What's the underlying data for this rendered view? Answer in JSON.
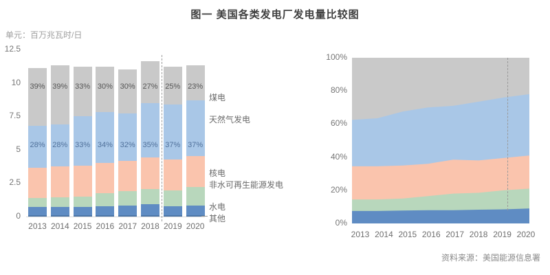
{
  "title": "图一  美国各类发电厂发电量比较图",
  "unit_label": "单元：百万兆瓦时/日",
  "source": "资料来源：美国能源信息署",
  "colors": {
    "coal": "#c9c9c9",
    "gas": "#a9c7e7",
    "nuclear": "#fac4ad",
    "nonhydro": "#b8d7bc",
    "hydro": "#5f8cc3",
    "other": "#4d77a8",
    "divider": "#9a9a9a"
  },
  "legend_items": [
    {
      "key": "coal",
      "label": "煤电"
    },
    {
      "key": "gas",
      "label": "天然气发电"
    },
    {
      "key": "nuclear",
      "label": "核电"
    },
    {
      "key": "nonhydro",
      "label": "非水可再生能源发电"
    },
    {
      "key": "hydro",
      "label": "水电"
    },
    {
      "key": "other",
      "label": "其他"
    }
  ],
  "chart_data": [
    {
      "type": "bar",
      "stacked": true,
      "title": "",
      "xlabel": "",
      "ylabel": "百万兆瓦时/日",
      "ylim": [
        0,
        12.5
      ],
      "yticks": [
        0,
        2.5,
        5,
        7.5,
        10,
        12.5
      ],
      "grid": false,
      "categories": [
        "2013",
        "2014",
        "2015",
        "2016",
        "2017",
        "2018",
        "2019",
        "2020"
      ],
      "forecast_divider_after": "2018",
      "series": [
        {
          "key": "other",
          "name": "其他",
          "values": [
            0.11,
            0.11,
            0.11,
            0.11,
            0.11,
            0.11,
            0.11,
            0.11
          ]
        },
        {
          "key": "hydro",
          "name": "水电",
          "values": [
            0.62,
            0.62,
            0.62,
            0.67,
            0.7,
            0.8,
            0.68,
            0.71
          ]
        },
        {
          "key": "nonhydro",
          "name": "非水可再生能源发电",
          "values": [
            0.67,
            0.7,
            0.77,
            0.95,
            1.07,
            1.17,
            1.16,
            1.4
          ]
        },
        {
          "key": "nuclear",
          "name": "核电",
          "values": [
            2.26,
            2.3,
            2.3,
            2.3,
            2.3,
            2.33,
            2.31,
            2.3
          ]
        },
        {
          "key": "gas",
          "name": "天然气发电",
          "values": [
            3.11,
            3.16,
            3.7,
            3.81,
            3.52,
            4.06,
            4.14,
            4.18
          ],
          "pct_labels": [
            "28%",
            "28%",
            "33%",
            "34%",
            "32%",
            "35%",
            "37%",
            "37%"
          ]
        },
        {
          "key": "coal",
          "name": "煤电",
          "values": [
            4.33,
            4.41,
            3.7,
            3.36,
            3.3,
            3.13,
            2.8,
            2.6
          ],
          "pct_labels": [
            "39%",
            "39%",
            "33%",
            "30%",
            "30%",
            "27%",
            "25%",
            "23%"
          ]
        }
      ],
      "totals": [
        11.1,
        11.3,
        11.2,
        11.2,
        11.0,
        11.6,
        11.2,
        11.3
      ]
    },
    {
      "type": "area",
      "stacked_percent": true,
      "title": "",
      "ylim": [
        0,
        100
      ],
      "yticks": [
        0,
        20,
        40,
        60,
        80,
        100
      ],
      "ytick_suffix": "%",
      "grid": false,
      "categories": [
        "2013",
        "2014",
        "2015",
        "2016",
        "2017",
        "2018",
        "2019",
        "2020"
      ],
      "forecast_divider_after": "2019",
      "layers_cumulative_top_pct": [
        {
          "key": "hydro_other",
          "name": "水电+其他",
          "top_values": [
            7.5,
            7.5,
            7.8,
            8.0,
            8.0,
            8.3,
            8.5,
            9.0
          ]
        },
        {
          "key": "nonhydro",
          "name": "非水可再生能源发电",
          "top_values": [
            14.5,
            14.5,
            15.0,
            16.5,
            18.0,
            18.5,
            20.0,
            21.0
          ]
        },
        {
          "key": "nuclear",
          "name": "核电",
          "top_values": [
            34.5,
            34.5,
            35.0,
            36.0,
            38.5,
            38.0,
            39.5,
            41.0
          ]
        },
        {
          "key": "gas",
          "name": "天然气发电",
          "top_values": [
            62.5,
            63.5,
            67.5,
            70.0,
            71.0,
            73.5,
            76.0,
            78.0
          ]
        },
        {
          "key": "coal",
          "name": "煤电",
          "top_values": [
            100,
            100,
            100,
            100,
            100,
            100,
            100,
            100
          ]
        }
      ]
    }
  ]
}
